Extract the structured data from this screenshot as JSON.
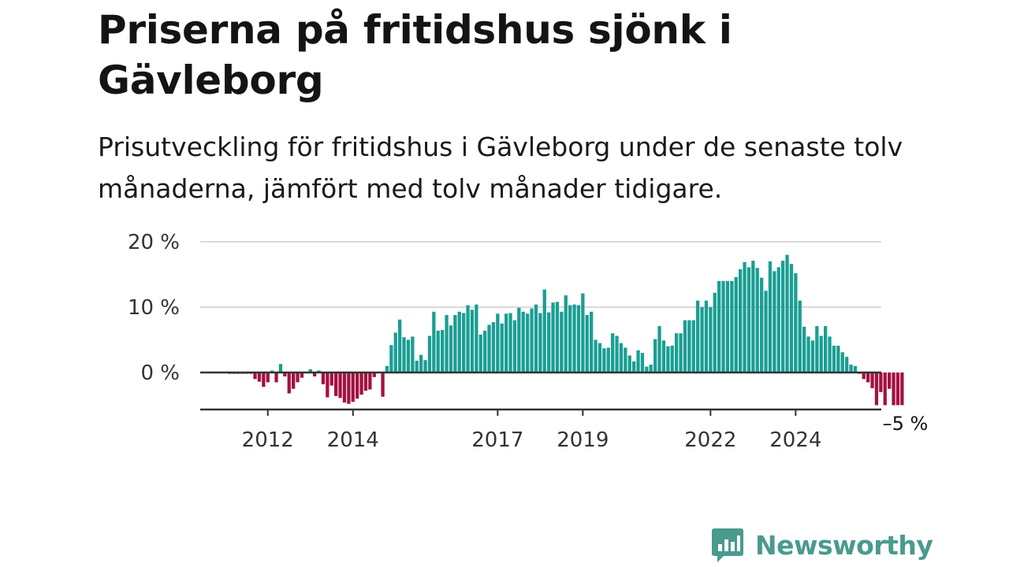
{
  "title": "Priserna på fritidshus sjönk i Gävleborg",
  "subtitle": "Prisutveckling för fritidshus i Gävleborg under de senaste tolv månaderna, jämfört med tolv månader tidigare.",
  "logo": {
    "text": "Newsworthy",
    "icon": "bar-chart-speech-bubble-icon",
    "color": "#4a9a8e"
  },
  "colors": {
    "positive": "#1a9e93",
    "negative": "#a3113f",
    "zero_line": "#333333",
    "grid": "#d9d9d9"
  },
  "chart_data": {
    "type": "bar",
    "title": "Priserna på fritidshus sjönk i Gävleborg",
    "xlabel": "",
    "ylabel": "",
    "ylim": [
      -6,
      20
    ],
    "y_ticks": [
      {
        "value": 0,
        "label": "0 %"
      },
      {
        "value": 10,
        "label": "10 %"
      },
      {
        "value": 20,
        "label": "20 %"
      }
    ],
    "x_ticks": [
      {
        "index": 9,
        "label": "2012"
      },
      {
        "index": 29,
        "label": "2014"
      },
      {
        "index": 63,
        "label": "2017"
      },
      {
        "index": 83,
        "label": "2019"
      },
      {
        "index": 113,
        "label": "2022"
      },
      {
        "index": 133,
        "label": "2024"
      }
    ],
    "end_label": "–5 %",
    "grid": true,
    "values": [
      -0.2,
      -0.2,
      -0.2,
      -0.2,
      -0.2,
      -0.2,
      -1.0,
      -1.4,
      -2.2,
      -1.5,
      0.3,
      -1.5,
      1.3,
      -0.6,
      -3.2,
      -2.5,
      -1.5,
      -0.8,
      0.0,
      0.5,
      -0.6,
      0.3,
      -1.8,
      -3.8,
      -2.0,
      -3.6,
      -3.9,
      -4.6,
      -4.8,
      -4.5,
      -4.0,
      -3.4,
      -2.8,
      -2.6,
      -0.7,
      0.0,
      -3.7,
      1.0,
      4.2,
      6.1,
      8.1,
      5.4,
      5.0,
      5.5,
      1.8,
      2.7,
      1.9,
      5.6,
      9.3,
      6.4,
      6.5,
      8.8,
      7.2,
      8.8,
      9.3,
      9.1,
      10.3,
      9.6,
      10.4,
      5.8,
      6.4,
      7.3,
      7.7,
      9.0,
      7.5,
      9.0,
      9.1,
      8.0,
      9.9,
      9.3,
      9.0,
      9.8,
      10.4,
      9.1,
      12.7,
      9.2,
      10.7,
      10.8,
      9.3,
      11.8,
      10.3,
      10.4,
      10.3,
      12.1,
      8.8,
      9.3,
      5.0,
      4.5,
      3.7,
      3.8,
      6.0,
      5.6,
      4.5,
      3.8,
      2.6,
      1.7,
      3.4,
      3.0,
      0.9,
      1.2,
      5.1,
      7.1,
      4.9,
      4.0,
      4.1,
      6.0,
      6.0,
      8.0,
      8.0,
      8.0,
      11.0,
      10.0,
      11.0,
      10.0,
      12.2,
      14.0,
      14.0,
      14.0,
      14.0,
      14.6,
      15.8,
      16.9,
      16.1,
      17.1,
      16.0,
      14.5,
      12.5,
      17.0,
      15.5,
      16.1,
      17.1,
      18.0,
      16.6,
      15.2,
      11.0,
      7.0,
      5.5,
      4.9,
      7.1,
      5.6,
      7.1,
      5.5,
      4.1,
      4.1,
      3.1,
      2.4,
      1.2,
      1.0,
      -0.2,
      -1.0,
      -1.5,
      -2.4,
      -5.0,
      -3.0,
      -5.0,
      -2.5,
      -5.0,
      -5.0,
      -5.0
    ]
  }
}
